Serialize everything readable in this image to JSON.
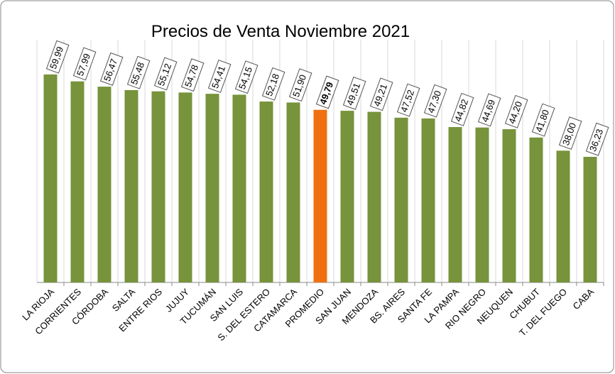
{
  "chart_data": {
    "type": "bar",
    "title": "Precios de Venta  Noviembre 2021",
    "categories": [
      "LA RIOJA",
      "CORRIENTES",
      "CÓRDOBA",
      "SALTA",
      "ENTRE RIOS",
      "JUJUY",
      "TUCUMÁN",
      "SAN LUIS",
      "S. DEL ESTERO",
      "CATAMARCA",
      "PROMEDIO",
      "SAN JUAN",
      "MENDOZA",
      "BS. AIRES",
      "SANTA FE",
      "LA PAMPA",
      "RIO NEGRO",
      "NEUQUEN",
      "CHUBUT",
      "T. DEL FUEGO",
      "CABA"
    ],
    "values": [
      59.99,
      57.99,
      56.47,
      55.48,
      55.12,
      54.78,
      54.41,
      54.15,
      52.18,
      51.9,
      49.79,
      49.51,
      49.21,
      47.52,
      47.3,
      44.82,
      44.69,
      44.2,
      41.8,
      38.0,
      36.23
    ],
    "value_labels": [
      "59,99",
      "57,99",
      "56,47",
      "55,48",
      "55,12",
      "54,78",
      "54,41",
      "54,15",
      "52,18",
      "51,90",
      "49,79",
      "49,51",
      "49,21",
      "47,52",
      "47,30",
      "44,82",
      "44,69",
      "44,20",
      "41,80",
      "38,00",
      "36,23"
    ],
    "color": "#77933c",
    "highlight_index": 10,
    "highlight_color": "#f07010",
    "ylim": [
      0,
      70
    ],
    "grid": true
  }
}
